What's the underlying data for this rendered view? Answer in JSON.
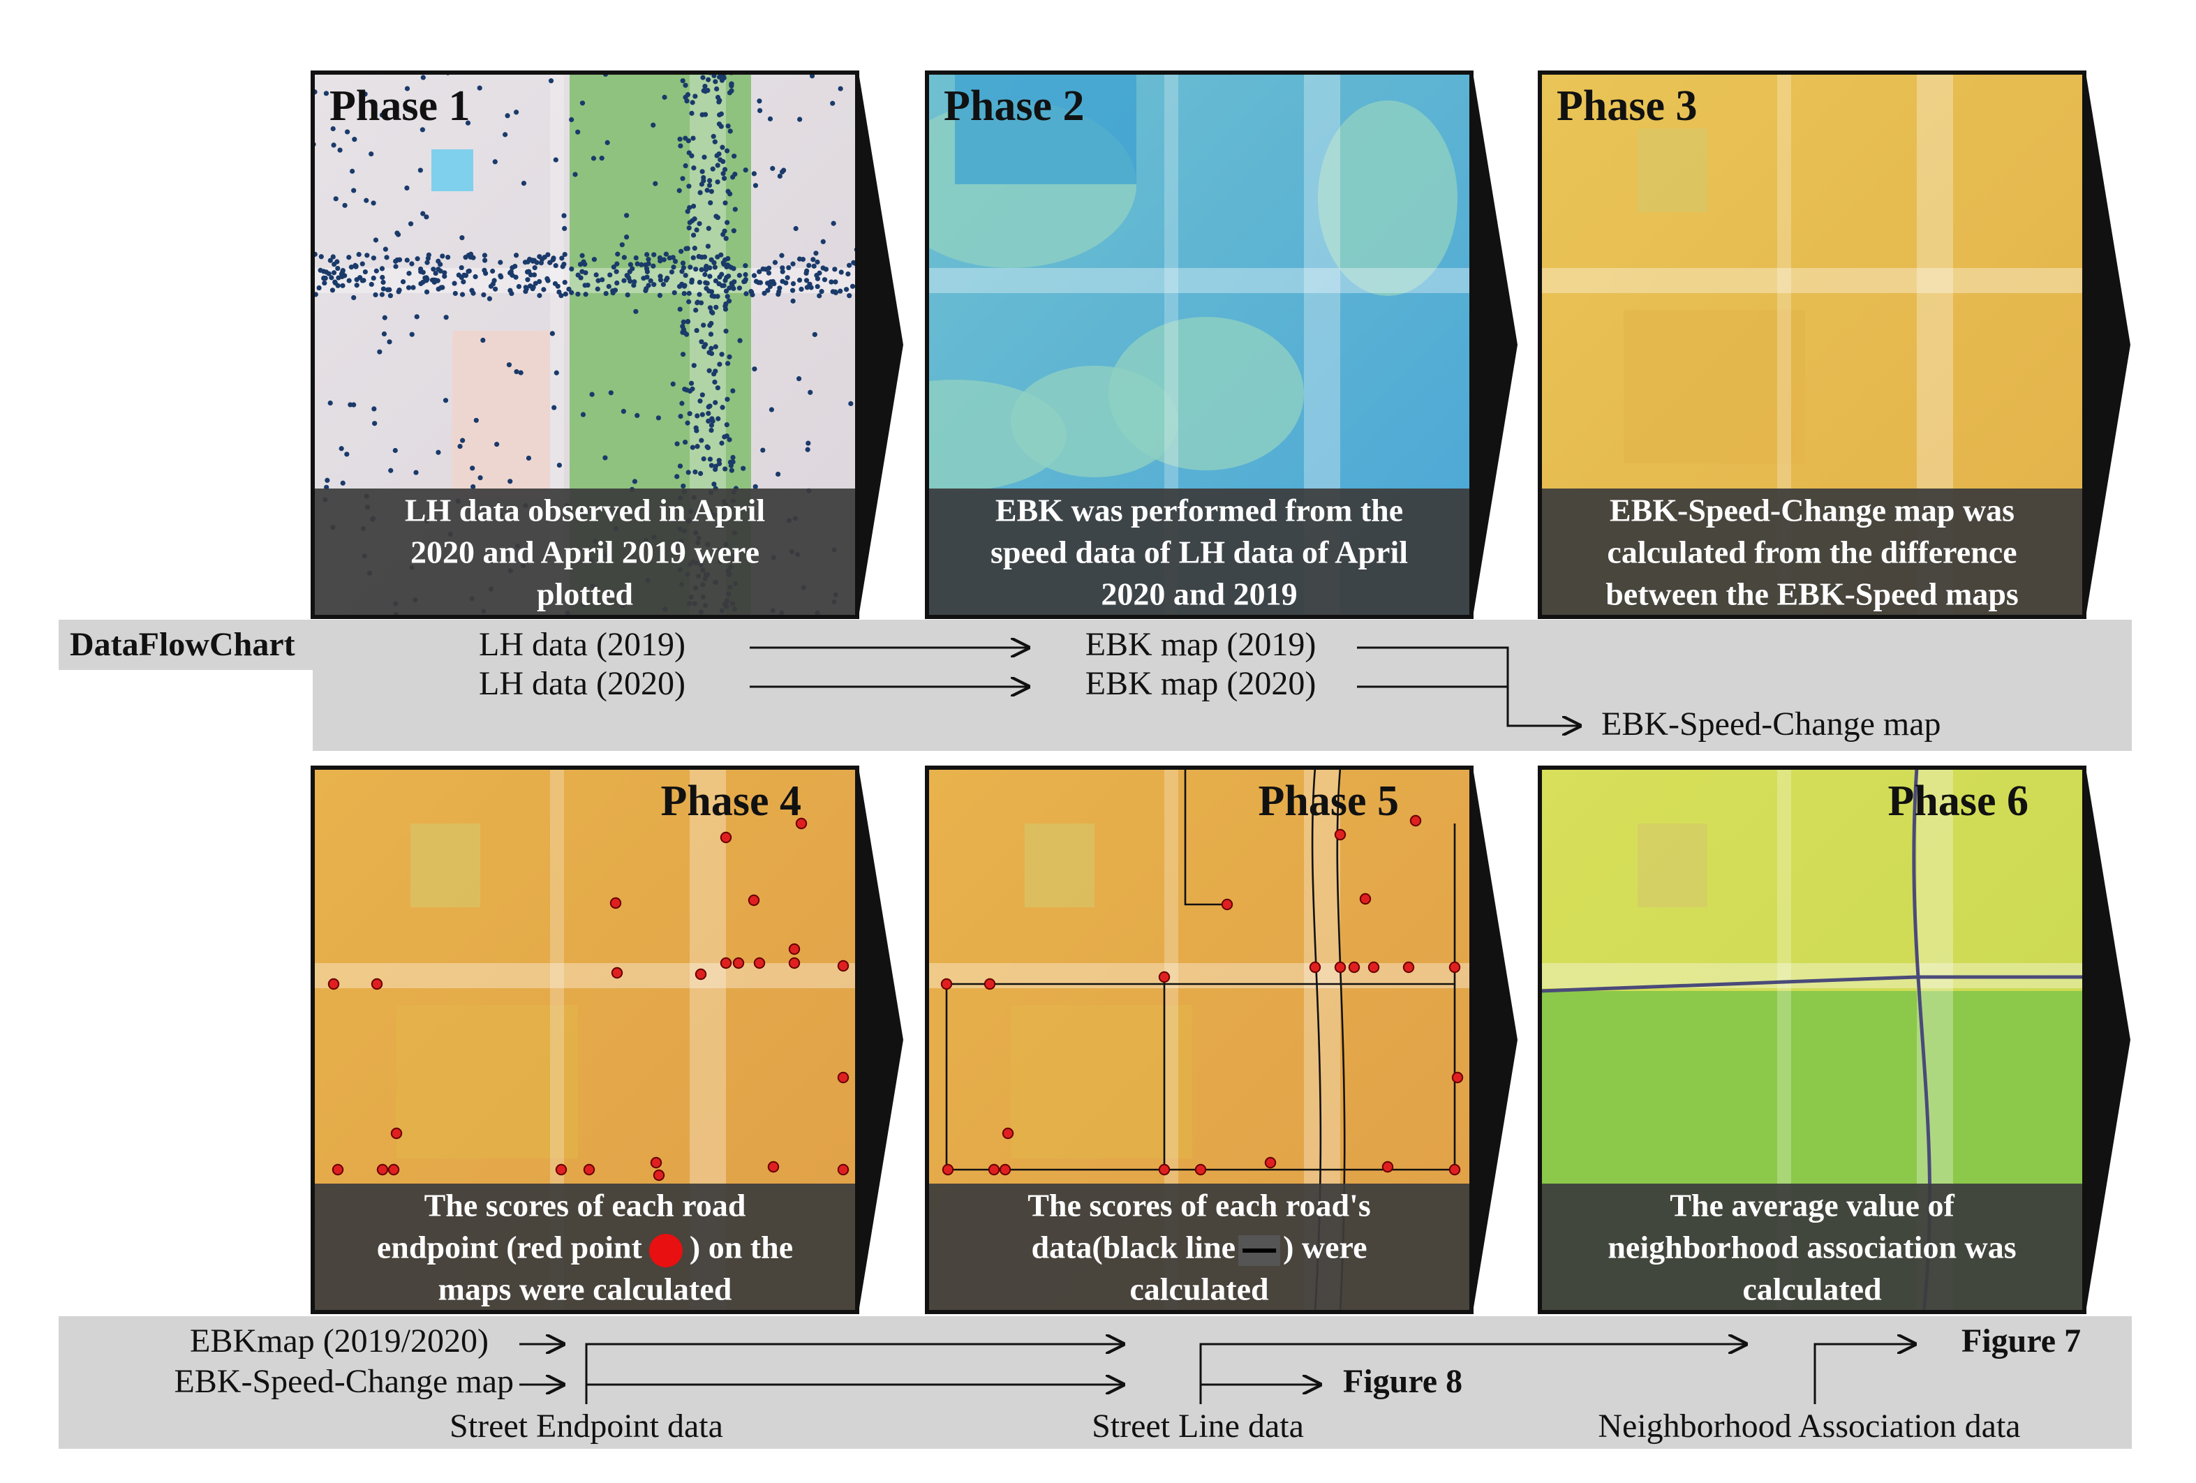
{
  "phases": [
    {
      "title": "Phase 1",
      "caption": [
        [
          "LH data observed in April"
        ],
        [
          "2020 and April 2019 were"
        ],
        [
          "plotted"
        ]
      ]
    },
    {
      "title": "Phase 2",
      "caption": [
        [
          "EBK was performed from the"
        ],
        [
          "speed data of LH data of April"
        ],
        [
          "2020 and 2019"
        ]
      ]
    },
    {
      "title": "Phase 3",
      "caption": [
        [
          "EBK-Speed-Change map was"
        ],
        [
          "calculated from the difference"
        ],
        [
          "between the EBK-Speed maps"
        ]
      ]
    },
    {
      "title": "Phase 4",
      "caption": [
        [
          "The scores of each road"
        ],
        [
          "endpoint (red point",
          ") on the"
        ],
        [
          "maps were calculated"
        ]
      ]
    },
    {
      "title": "Phase 5",
      "caption": [
        [
          "The scores of each road's"
        ],
        [
          "data(black line",
          ") were"
        ],
        [
          "calculated"
        ]
      ]
    },
    {
      "title": "Phase 6",
      "caption": [
        [
          "The average value of"
        ],
        [
          "neighborhood association was"
        ],
        [
          "calculated"
        ]
      ]
    }
  ],
  "flow_top": {
    "label": "DataFlowChart",
    "inputs": [
      "LH data (2019)",
      "LH data (2020)"
    ],
    "ebk": [
      "EBK map (2019)",
      "EBK map (2020)"
    ],
    "output": "EBK-Speed-Change map"
  },
  "flow_bottom": {
    "inputs": [
      "EBKmap (2019/2020)",
      "EBK-Speed-Change map"
    ],
    "sources": [
      "Street Endpoint data",
      "Street Line data",
      "Neighborhood Association data"
    ],
    "figures": [
      "Figure 8",
      "Figure 7"
    ]
  }
}
